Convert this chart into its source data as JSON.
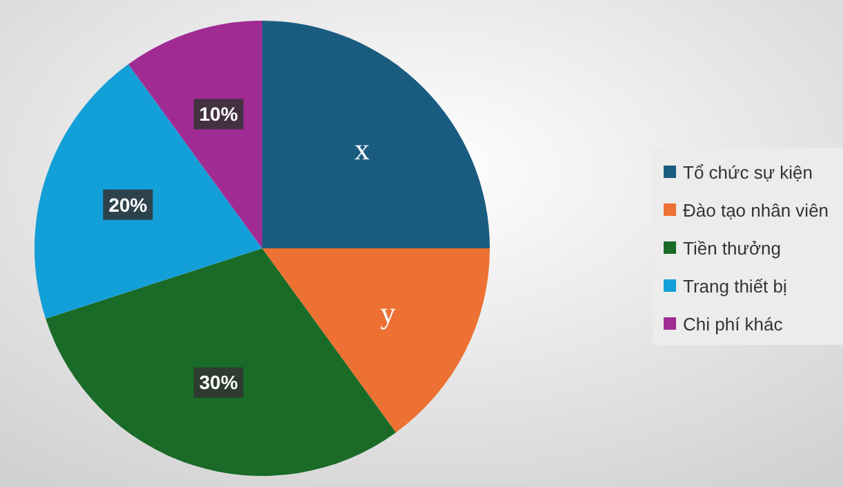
{
  "chart_data": {
    "type": "pie",
    "categories": [
      "Tổ chức sự kiện",
      "Đào tạo nhân viên",
      "Tiền thưởng",
      "Trang thiết bị",
      "Chi phí khác"
    ],
    "values": [
      25,
      15,
      30,
      20,
      10
    ],
    "value_labels": [
      "x",
      "y",
      "30%",
      "20%",
      "10%"
    ],
    "colors": [
      "#1a5c80",
      "#ed7132",
      "#1a6b27",
      "#139fd8",
      "#a02b93"
    ],
    "legend": "right"
  }
}
